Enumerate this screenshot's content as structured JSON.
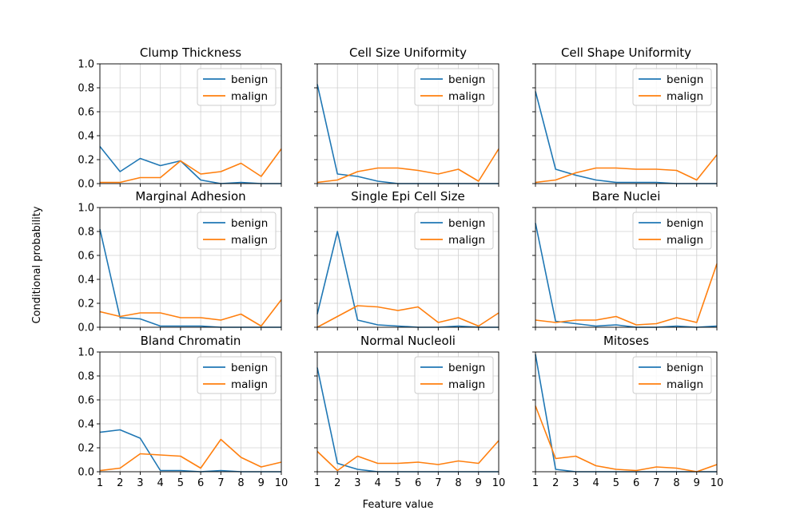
{
  "chart_data": {
    "type": "line",
    "xlabel": "Feature value",
    "ylabel": "Conditional probability",
    "x": [
      1,
      2,
      3,
      4,
      5,
      6,
      7,
      8,
      9,
      10
    ],
    "xlim": [
      1,
      10
    ],
    "ylim": [
      0,
      1
    ],
    "yticks": [
      "0.0",
      "0.2",
      "0.4",
      "0.6",
      "0.8",
      "1.0"
    ],
    "xticks": [
      "1",
      "2",
      "3",
      "4",
      "5",
      "6",
      "7",
      "8",
      "9",
      "10"
    ],
    "grid": true,
    "legend_position": "top-right",
    "colors": {
      "benign": "#1f77b4",
      "malign": "#ff7f0e"
    },
    "panels": [
      {
        "title": "Clump Thickness",
        "series": [
          {
            "name": "benign",
            "values": [
              0.31,
              0.1,
              0.21,
              0.15,
              0.19,
              0.03,
              0.0,
              0.01,
              0.0,
              0.0
            ]
          },
          {
            "name": "malign",
            "values": [
              0.01,
              0.01,
              0.05,
              0.05,
              0.19,
              0.08,
              0.1,
              0.17,
              0.06,
              0.29
            ]
          }
        ]
      },
      {
        "title": "Cell Size Uniformity",
        "series": [
          {
            "name": "benign",
            "values": [
              0.83,
              0.08,
              0.06,
              0.02,
              0.0,
              0.0,
              0.0,
              0.0,
              0.0,
              0.0
            ]
          },
          {
            "name": "malign",
            "values": [
              0.01,
              0.03,
              0.1,
              0.13,
              0.13,
              0.11,
              0.08,
              0.12,
              0.02,
              0.29
            ]
          }
        ]
      },
      {
        "title": "Cell Shape Uniformity",
        "series": [
          {
            "name": "benign",
            "values": [
              0.77,
              0.12,
              0.07,
              0.03,
              0.01,
              0.01,
              0.01,
              0.0,
              0.0,
              0.0
            ]
          },
          {
            "name": "malign",
            "values": [
              0.01,
              0.03,
              0.09,
              0.13,
              0.13,
              0.12,
              0.12,
              0.11,
              0.03,
              0.24
            ]
          }
        ]
      },
      {
        "title": "Marginal Adhesion",
        "series": [
          {
            "name": "benign",
            "values": [
              0.82,
              0.08,
              0.07,
              0.01,
              0.01,
              0.01,
              0.0,
              0.0,
              0.0,
              0.0
            ]
          },
          {
            "name": "malign",
            "values": [
              0.13,
              0.09,
              0.12,
              0.12,
              0.08,
              0.08,
              0.06,
              0.11,
              0.01,
              0.23
            ]
          }
        ]
      },
      {
        "title": "Single Epi Cell Size",
        "series": [
          {
            "name": "benign",
            "values": [
              0.11,
              0.8,
              0.06,
              0.02,
              0.01,
              0.0,
              0.0,
              0.01,
              0.0,
              0.0
            ]
          },
          {
            "name": "malign",
            "values": [
              0.0,
              0.09,
              0.18,
              0.17,
              0.14,
              0.17,
              0.04,
              0.08,
              0.01,
              0.12
            ]
          }
        ]
      },
      {
        "title": "Bare Nuclei",
        "series": [
          {
            "name": "benign",
            "values": [
              0.87,
              0.05,
              0.03,
              0.01,
              0.02,
              0.0,
              0.0,
              0.01,
              0.0,
              0.01
            ]
          },
          {
            "name": "malign",
            "values": [
              0.06,
              0.04,
              0.06,
              0.06,
              0.09,
              0.02,
              0.03,
              0.08,
              0.04,
              0.53
            ]
          }
        ]
      },
      {
        "title": "Bland Chromatin",
        "series": [
          {
            "name": "benign",
            "values": [
              0.33,
              0.35,
              0.28,
              0.01,
              0.01,
              0.0,
              0.01,
              0.0,
              0.0,
              0.0
            ]
          },
          {
            "name": "malign",
            "values": [
              0.01,
              0.03,
              0.15,
              0.14,
              0.13,
              0.03,
              0.27,
              0.12,
              0.04,
              0.08
            ]
          }
        ]
      },
      {
        "title": "Normal Nucleoli",
        "series": [
          {
            "name": "benign",
            "values": [
              0.87,
              0.07,
              0.02,
              0.0,
              0.0,
              0.0,
              0.0,
              0.0,
              0.0,
              0.0
            ]
          },
          {
            "name": "malign",
            "values": [
              0.17,
              0.01,
              0.13,
              0.07,
              0.07,
              0.08,
              0.06,
              0.09,
              0.07,
              0.26
            ]
          }
        ]
      },
      {
        "title": "Mitoses",
        "series": [
          {
            "name": "benign",
            "values": [
              0.98,
              0.02,
              0.0,
              0.0,
              0.0,
              0.0,
              0.0,
              0.0,
              0.0,
              0.0
            ]
          },
          {
            "name": "malign",
            "values": [
              0.55,
              0.11,
              0.13,
              0.05,
              0.02,
              0.01,
              0.04,
              0.03,
              0.0,
              0.06
            ]
          }
        ]
      }
    ]
  }
}
